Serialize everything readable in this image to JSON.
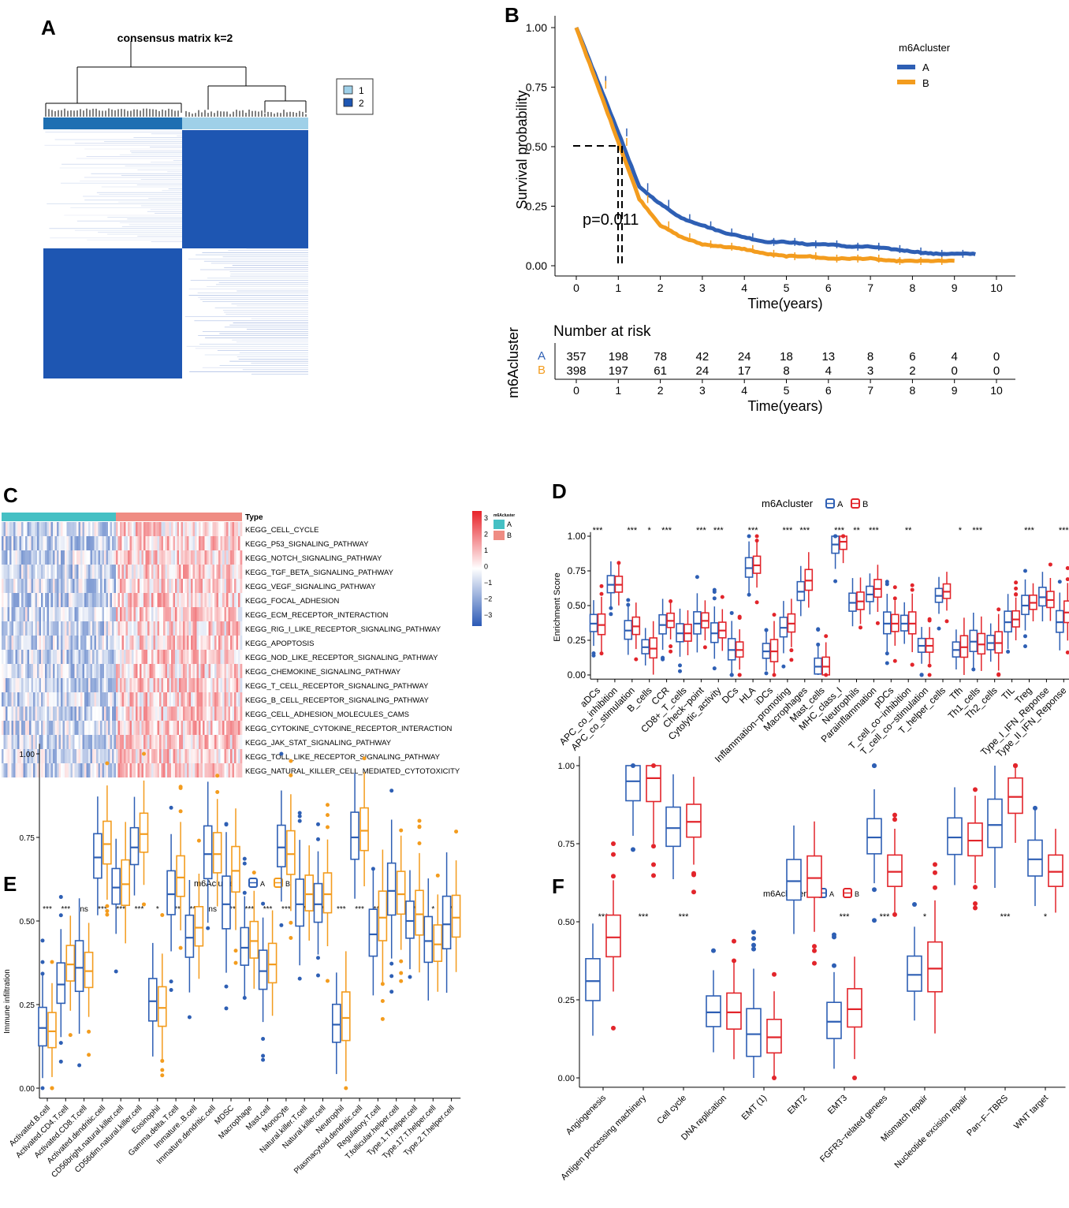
{
  "colors": {
    "blue": "#2e5fb4",
    "orange": "#f39c1e",
    "red": "#e2252b",
    "teal": "#45c0c4",
    "salmon": "#ef8c83",
    "dark_blue": "#1e56b2",
    "light_blue": "#9fd0e8"
  },
  "panel_labels": {
    "a": "A",
    "b": "B",
    "c": "C",
    "d": "D",
    "e": "E",
    "f": "F"
  },
  "chart_data": [
    {
      "panel": "A",
      "type": "heatmap",
      "title": "consensus matrix k=2",
      "legend": [
        "1",
        "2"
      ],
      "cluster_sizes": [
        357,
        398
      ]
    },
    {
      "panel": "B",
      "type": "line",
      "ylabel": "Survival probability",
      "xlabel": "Time(years)",
      "legend_title": "m6Acluster",
      "yticks": [
        "0.00",
        "0.25",
        "0.50",
        "0.75",
        "1.00"
      ],
      "xticks": [
        "0",
        "1",
        "2",
        "3",
        "4",
        "5",
        "6",
        "7",
        "8",
        "9",
        "10"
      ],
      "pvalue": "p=0.011",
      "series": [
        {
          "name": "A",
          "color": "#2e5fb4",
          "x": [
            0,
            0.5,
            1,
            1.5,
            2,
            2.5,
            3,
            3.5,
            4,
            4.5,
            5,
            5.5,
            6,
            6.5,
            7,
            7.5,
            8,
            8.5,
            9,
            9.5
          ],
          "y": [
            1.0,
            0.78,
            0.56,
            0.33,
            0.26,
            0.2,
            0.17,
            0.14,
            0.12,
            0.1,
            0.1,
            0.09,
            0.09,
            0.08,
            0.08,
            0.07,
            0.06,
            0.05,
            0.05,
            0.05
          ]
        },
        {
          "name": "B",
          "color": "#f39c1e",
          "x": [
            0,
            0.5,
            1,
            1.5,
            2,
            2.5,
            3,
            3.5,
            4,
            4.5,
            5,
            5.5,
            6,
            6.5,
            7,
            7.5,
            8,
            8.5,
            9
          ],
          "y": [
            1.0,
            0.76,
            0.52,
            0.28,
            0.17,
            0.12,
            0.09,
            0.08,
            0.07,
            0.05,
            0.04,
            0.04,
            0.03,
            0.03,
            0.03,
            0.02,
            0.02,
            0.02,
            0.02
          ]
        }
      ],
      "risk_table": {
        "title": "Number at risk",
        "ylabel": "m6Acluster",
        "xlabel": "Time(years)",
        "rows": [
          {
            "name": "A",
            "values": [
              "357",
              "198",
              "78",
              "42",
              "24",
              "18",
              "13",
              "8",
              "6",
              "4",
              "0"
            ]
          },
          {
            "name": "B",
            "values": [
              "398",
              "197",
              "61",
              "24",
              "17",
              "8",
              "4",
              "3",
              "2",
              "0",
              "0"
            ]
          }
        ]
      }
    },
    {
      "panel": "C",
      "type": "heatmap",
      "annotation_label": "Type",
      "legend_title": "m6Acluster",
      "legend_groups": [
        "A",
        "B"
      ],
      "colorbar_ticks": [
        "3",
        "2",
        "1",
        "0",
        "−1",
        "−2",
        "−3"
      ],
      "rows": [
        "KEGG_CELL_CYCLE",
        "KEGG_P53_SIGNALING_PATHWAY",
        "KEGG_NOTCH_SIGNALING_PATHWAY",
        "KEGG_TGF_BETA_SIGNALING_PATHWAY",
        "KEGG_VEGF_SIGNALING_PATHWAY",
        "KEGG_FOCAL_ADHESION",
        "KEGG_ECM_RECEPTOR_INTERACTION",
        "KEGG_RIG_I_LIKE_RECEPTOR_SIGNALING_PATHWAY",
        "KEGG_APOPTOSIS",
        "KEGG_NOD_LIKE_RECEPTOR_SIGNALING_PATHWAY",
        "KEGG_CHEMOKINE_SIGNALING_PATHWAY",
        "KEGG_T_CELL_RECEPTOR_SIGNALING_PATHWAY",
        "KEGG_B_CELL_RECEPTOR_SIGNALING_PATHWAY",
        "KEGG_CELL_ADHESION_MOLECULES_CAMS",
        "KEGG_CYTOKINE_CYTOKINE_RECEPTOR_INTERACTION",
        "KEGG_JAK_STAT_SIGNALING_PATHWAY",
        "KEGG_TOLL_LIKE_RECEPTOR_SIGNALING_PATHWAY",
        "KEGG_NATURAL_KILLER_CELL_MEDIATED_CYTOTOXICITY"
      ]
    },
    {
      "panel": "D",
      "type": "box",
      "legend_title": "m6Acluster",
      "legend": [
        "A",
        "B"
      ],
      "ylabel": "Enrichment Score",
      "yticks": [
        "0.00",
        "0.25",
        "0.50",
        "0.75",
        "1.00"
      ],
      "categories": [
        "aDCs",
        "APC_co_inhibition",
        "APC_co_stimulation",
        "B_cells",
        "CCR",
        "CD8+_T_cells",
        "Check−point",
        "Cytolytic_activity",
        "DCs",
        "HLA",
        "iDCs",
        "Inflammation−promoting",
        "Macrophages",
        "Mast_cells",
        "MHC_class_I",
        "Neutrophils",
        "Parainflammation",
        "pDCs",
        "T_cell_co−inhibition",
        "T_cell_co−stimulation",
        "T_helper_cells",
        "Tfh",
        "Th1_cells",
        "Th2_cells",
        "TIL",
        "Treg",
        "Type_I_IFN_Reponse",
        "Type_II_IFN_Reponse"
      ],
      "significance": [
        "***",
        "",
        "***",
        "*",
        "***",
        "",
        "***",
        "***",
        "",
        "***",
        "",
        "***",
        "***",
        "",
        "***",
        "**",
        "***",
        "",
        "**",
        "",
        "",
        "*",
        "***",
        "",
        "",
        "***",
        "",
        "***"
      ],
      "medians_A": [
        0.37,
        0.65,
        0.32,
        0.2,
        0.36,
        0.3,
        0.37,
        0.3,
        0.18,
        0.77,
        0.17,
        0.34,
        0.6,
        0.06,
        0.94,
        0.52,
        0.58,
        0.37,
        0.37,
        0.21,
        0.57,
        0.18,
        0.24,
        0.23,
        0.38,
        0.5,
        0.56,
        0.38
      ],
      "medians_B": [
        0.36,
        0.65,
        0.35,
        0.19,
        0.39,
        0.3,
        0.39,
        0.32,
        0.18,
        0.79,
        0.17,
        0.37,
        0.68,
        0.06,
        0.96,
        0.53,
        0.62,
        0.37,
        0.37,
        0.21,
        0.6,
        0.2,
        0.22,
        0.23,
        0.4,
        0.52,
        0.54,
        0.45
      ]
    },
    {
      "panel": "E",
      "type": "box",
      "legend_title": "m6Acluster",
      "legend": [
        "A",
        "B"
      ],
      "ylabel": "Immune infiltration",
      "yticks": [
        "0.00",
        "0.25",
        "0.50",
        "0.75",
        "1.00"
      ],
      "categories": [
        "Activated.B.cell",
        "Activated.CD4.T.cell",
        "Activated.CD8.T.cell",
        "Activated.dendritic.cell",
        "CD56bright.natural.killer.cell",
        "CD56dim.natural.killer.cell",
        "Eosinophil",
        "Gamma.delta.T.cell",
        "Immature..B.cell",
        "Immature.dendritic.cell",
        "MDSC",
        "Macrophage",
        "Mast.cell",
        "Monocyte",
        "Natural.killer.T.cell",
        "Natural.killer.cell",
        "Neutrophil",
        "Plasmacytoid.dendritic.cell",
        "Regulatory.T.cell",
        "T.follicular.helper.cell",
        "Type.1.T.helper.cell",
        "Type.17.T.helper.cell",
        "Type.2.T.helper.cell"
      ],
      "significance": [
        "***",
        "***",
        "ns",
        "***",
        "***",
        "***",
        "*",
        "***",
        "***",
        "ns",
        "***",
        "***",
        "***",
        "***",
        "***",
        "***",
        "***",
        "***",
        "***",
        "ns",
        "***",
        "*",
        "***"
      ],
      "medians_A": [
        0.18,
        0.31,
        0.36,
        0.69,
        0.6,
        0.72,
        0.26,
        0.58,
        0.45,
        0.7,
        0.55,
        0.42,
        0.35,
        0.72,
        0.55,
        0.55,
        0.19,
        0.75,
        0.46,
        0.59,
        0.5,
        0.44,
        0.49
      ],
      "medians_B": [
        0.17,
        0.37,
        0.35,
        0.73,
        0.61,
        0.76,
        0.24,
        0.63,
        0.48,
        0.7,
        0.65,
        0.44,
        0.37,
        0.7,
        0.58,
        0.58,
        0.21,
        0.77,
        0.51,
        0.58,
        0.52,
        0.43,
        0.51
      ]
    },
    {
      "panel": "F",
      "type": "box",
      "legend_title": "m6Acluster",
      "legend": [
        "A",
        "B"
      ],
      "ylabel": "",
      "yticks": [
        "0.00",
        "0.25",
        "0.50",
        "0.75",
        "1.00"
      ],
      "categories": [
        "Angiogenesis",
        "Antigen processing machinery",
        "Cell cycle",
        "DNA replication",
        "EMT (1)",
        "EMT2",
        "EMT3",
        "FGFR3−related genees",
        "Mismatch repair",
        "Nucleotide excision repair",
        "Pan−F−TBRS",
        "WNT target"
      ],
      "significance": [
        "***",
        "***",
        "***",
        "",
        "",
        "",
        "***",
        "***",
        "*",
        "",
        "***",
        "*"
      ],
      "medians_A": [
        0.31,
        0.95,
        0.8,
        0.21,
        0.14,
        0.63,
        0.18,
        0.77,
        0.33,
        0.77,
        0.81,
        0.7
      ],
      "medians_B": [
        0.45,
        0.96,
        0.82,
        0.21,
        0.13,
        0.64,
        0.22,
        0.66,
        0.35,
        0.76,
        0.9,
        0.66
      ]
    }
  ]
}
